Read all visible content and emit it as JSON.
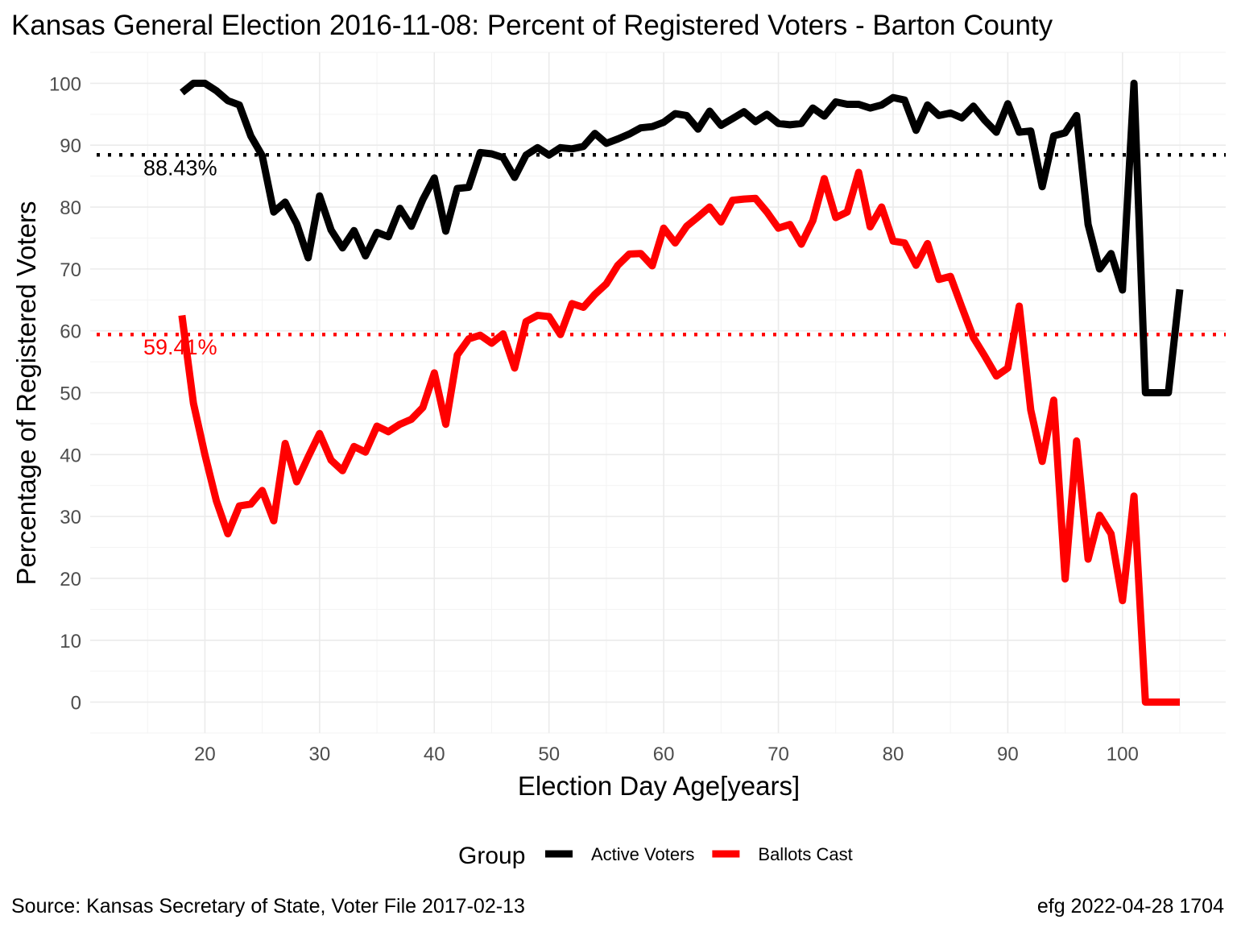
{
  "chart_data": {
    "type": "line",
    "title": "Kansas General Election 2016-11-08:  Percent of Registered Voters - Barton County",
    "xlabel": "Election Day Age[years]",
    "ylabel": "Percentage of Registered Voters",
    "xlim": [
      10,
      109
    ],
    "ylim": [
      -5,
      105
    ],
    "xticks": [
      20,
      30,
      40,
      50,
      60,
      70,
      80,
      90,
      100
    ],
    "yticks": [
      0,
      10,
      20,
      30,
      40,
      50,
      60,
      70,
      80,
      90,
      100
    ],
    "grid": true,
    "legend": {
      "title": "Group",
      "placement": "bottom"
    },
    "series": [
      {
        "name": "Active Voters",
        "color": "#000000",
        "x": [
          18,
          19,
          20,
          21,
          22,
          23,
          24,
          25,
          26,
          27,
          28,
          29,
          30,
          31,
          32,
          33,
          34,
          35,
          36,
          37,
          38,
          39,
          40,
          41,
          42,
          43,
          44,
          45,
          46,
          47,
          48,
          49,
          50,
          51,
          52,
          53,
          54,
          55,
          56,
          57,
          58,
          59,
          60,
          61,
          62,
          63,
          64,
          65,
          66,
          67,
          68,
          69,
          70,
          71,
          72,
          73,
          74,
          75,
          76,
          77,
          78,
          79,
          80,
          81,
          82,
          83,
          84,
          85,
          86,
          87,
          88,
          89,
          90,
          91,
          92,
          93,
          94,
          95,
          96,
          97,
          98,
          99,
          100,
          101,
          102,
          103,
          104,
          105
        ],
        "y": [
          98.5,
          100,
          100,
          98.8,
          97.2,
          96.5,
          91.5,
          88.3,
          79.2,
          80.8,
          77.3,
          71.8,
          81.8,
          76.3,
          73.4,
          76.2,
          72.1,
          75.9,
          75.2,
          79.8,
          76.9,
          81.2,
          84.7,
          76.1,
          83.0,
          83.2,
          88.8,
          88.6,
          88.0,
          84.8,
          88.4,
          89.6,
          88.4,
          89.6,
          89.4,
          89.8,
          91.9,
          90.3,
          91.0,
          91.8,
          92.8,
          93.0,
          93.7,
          95.1,
          94.8,
          92.6,
          95.5,
          93.2,
          94.3,
          95.4,
          93.8,
          95.0,
          93.5,
          93.3,
          93.5,
          96.0,
          94.7,
          97.0,
          96.6,
          96.6,
          96.0,
          96.5,
          97.7,
          97.3,
          92.4,
          96.5,
          94.8,
          95.2,
          94.4,
          96.3,
          94.0,
          92.1,
          96.7,
          92.1,
          92.3,
          83.3,
          91.5,
          92.0,
          94.8,
          77.2,
          70.0,
          72.5,
          66.6,
          100,
          50,
          50,
          50,
          66.7
        ]
      },
      {
        "name": "Ballots Cast",
        "color": "#ff0000",
        "x": [
          18,
          19,
          20,
          21,
          22,
          23,
          24,
          25,
          26,
          27,
          28,
          29,
          30,
          31,
          32,
          33,
          34,
          35,
          36,
          37,
          38,
          39,
          40,
          41,
          42,
          43,
          44,
          45,
          46,
          47,
          48,
          49,
          50,
          51,
          52,
          53,
          54,
          55,
          56,
          57,
          58,
          59,
          60,
          61,
          62,
          63,
          64,
          65,
          66,
          67,
          68,
          69,
          70,
          71,
          72,
          73,
          74,
          75,
          76,
          77,
          78,
          79,
          80,
          81,
          82,
          83,
          84,
          85,
          86,
          87,
          88,
          89,
          90,
          91,
          92,
          93,
          94,
          95,
          96,
          97,
          98,
          99,
          100,
          101,
          102,
          103,
          104,
          105
        ],
        "y": [
          62.5,
          48.3,
          40.0,
          32.5,
          27.2,
          31.7,
          32.0,
          34.2,
          29.3,
          41.8,
          35.6,
          39.6,
          43.4,
          39.1,
          37.4,
          41.3,
          40.4,
          44.6,
          43.7,
          44.9,
          45.7,
          47.6,
          53.2,
          44.9,
          56.1,
          58.7,
          59.3,
          58.0,
          59.5,
          54.0,
          61.5,
          62.5,
          62.3,
          59.4,
          64.4,
          63.8,
          65.9,
          67.6,
          70.6,
          72.4,
          72.5,
          70.5,
          76.6,
          74.2,
          76.9,
          78.4,
          80.0,
          77.6,
          81.1,
          81.3,
          81.4,
          79.2,
          76.6,
          77.2,
          74.0,
          77.8,
          84.6,
          78.3,
          79.2,
          85.6,
          76.8,
          80.0,
          74.5,
          74.2,
          70.6,
          74.1,
          68.3,
          68.8,
          63.8,
          58.9,
          55.9,
          52.7,
          54.0,
          64.0,
          47.2,
          38.9,
          48.8,
          19.9,
          42.2,
          23.1,
          30.2,
          27.2,
          16.4,
          33.3,
          0,
          0,
          0,
          0
        ]
      }
    ],
    "reference_lines": [
      {
        "series": "Active Voters",
        "y": 88.43,
        "label": "88.43%",
        "color": "#000000"
      },
      {
        "series": "Ballots Cast",
        "y": 59.41,
        "label": "59.41%",
        "color": "#ff0000"
      }
    ],
    "caption_left": "Source:  Kansas Secretary of State, Voter File  2017-02-13",
    "caption_right": "efg 2022-04-28 1704"
  }
}
